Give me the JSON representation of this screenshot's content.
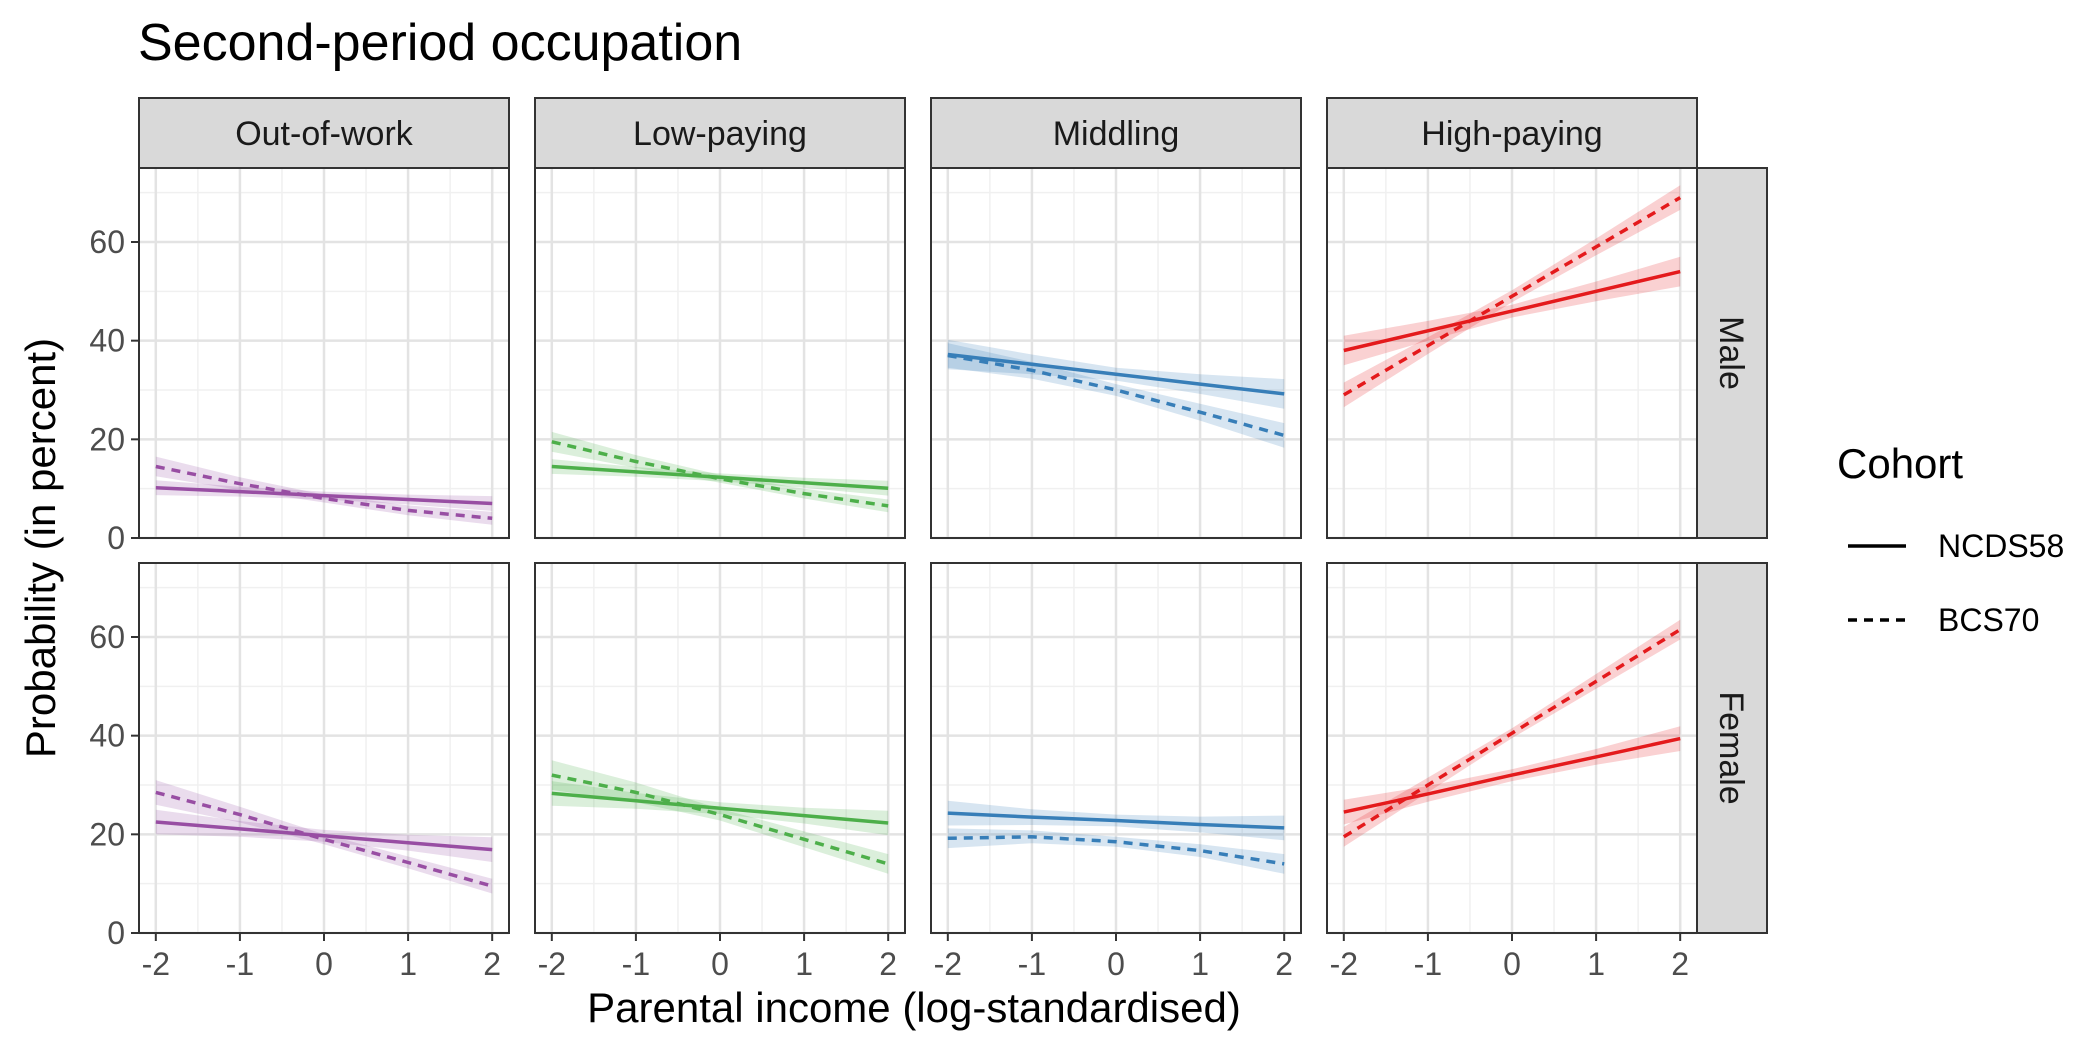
{
  "chart_data": {
    "type": "line",
    "title": "Second-period occupation",
    "xlabel": "Parental income (log-standardised)",
    "ylabel": "Probability (in percent)",
    "xlim": [
      -2.2,
      2.2
    ],
    "ylim": [
      0,
      75
    ],
    "x_ticks": [
      -2,
      -1,
      0,
      1,
      2
    ],
    "x_tick_labels": [
      "-2",
      "-1",
      "0",
      "1",
      "2"
    ],
    "y_ticks": [
      0,
      20,
      40,
      60
    ],
    "y_tick_labels": [
      "0",
      "20",
      "40",
      "60"
    ],
    "columns": [
      "Out-of-work",
      "Low-paying",
      "Middling",
      "High-paying"
    ],
    "rows": [
      "Male",
      "Female"
    ],
    "colors": {
      "Out-of-work": "#984ea3",
      "Low-paying": "#4daf4a",
      "Middling": "#377eb8",
      "High-paying": "#e41a1c"
    },
    "legend": {
      "title": "Cohort",
      "position": "right",
      "items": [
        {
          "label": "NCDS58",
          "linetype": "solid"
        },
        {
          "label": "BCS70",
          "linetype": "dashed"
        }
      ]
    },
    "grid": true,
    "x": [
      -2,
      -1,
      0,
      1,
      2
    ],
    "panels": [
      {
        "row": "Male",
        "column": "Out-of-work",
        "series": [
          {
            "cohort": "NCDS58",
            "y": [
              10.2,
              9.4,
              8.6,
              7.8,
              7.0
            ],
            "ci": [
              1.5,
              1.0,
              0.8,
              1.0,
              1.5
            ]
          },
          {
            "cohort": "BCS70",
            "y": [
              14.5,
              11.0,
              8.0,
              5.6,
              4.0
            ],
            "ci": [
              2.0,
              1.3,
              0.8,
              1.0,
              1.3
            ]
          }
        ]
      },
      {
        "row": "Male",
        "column": "Low-paying",
        "series": [
          {
            "cohort": "NCDS58",
            "y": [
              14.5,
              13.4,
              12.3,
              11.2,
              10.1
            ],
            "ci": [
              1.5,
              1.0,
              0.8,
              1.0,
              1.5
            ]
          },
          {
            "cohort": "BCS70",
            "y": [
              19.5,
              15.5,
              12.0,
              9.0,
              6.5
            ],
            "ci": [
              2.0,
              1.3,
              0.8,
              1.0,
              1.3
            ]
          }
        ]
      },
      {
        "row": "Male",
        "column": "Middling",
        "series": [
          {
            "cohort": "NCDS58",
            "y": [
              37.2,
              35.2,
              33.2,
              31.2,
              29.2
            ],
            "ci": [
              3.0,
              2.0,
              1.3,
              2.0,
              3.0
            ]
          },
          {
            "cohort": "BCS70",
            "y": [
              37.0,
              34.0,
              30.0,
              25.5,
              20.8
            ],
            "ci": [
              2.5,
              1.7,
              1.2,
              1.7,
              2.5
            ]
          }
        ]
      },
      {
        "row": "Male",
        "column": "High-paying",
        "series": [
          {
            "cohort": "NCDS58",
            "y": [
              38.0,
              42.0,
              46.0,
              50.0,
              54.0
            ],
            "ci": [
              3.0,
              2.0,
              1.3,
              2.0,
              3.0
            ]
          },
          {
            "cohort": "BCS70",
            "y": [
              29.0,
              39.0,
              49.0,
              59.0,
              69.0
            ],
            "ci": [
              2.5,
              1.7,
              1.2,
              1.7,
              2.5
            ]
          }
        ]
      },
      {
        "row": "Female",
        "column": "Out-of-work",
        "series": [
          {
            "cohort": "NCDS58",
            "y": [
              22.5,
              21.1,
              19.7,
              18.3,
              16.9
            ],
            "ci": [
              2.5,
              1.6,
              1.2,
              1.6,
              2.5
            ]
          },
          {
            "cohort": "BCS70",
            "y": [
              28.5,
              24.0,
              19.0,
              14.3,
              9.5
            ],
            "ci": [
              2.5,
              1.6,
              1.0,
              1.2,
              1.5
            ]
          }
        ]
      },
      {
        "row": "Female",
        "column": "Low-paying",
        "series": [
          {
            "cohort": "NCDS58",
            "y": [
              28.3,
              26.8,
              25.3,
              23.8,
              22.3
            ],
            "ci": [
              2.5,
              1.6,
              1.2,
              1.6,
              2.5
            ]
          },
          {
            "cohort": "BCS70",
            "y": [
              32.0,
              28.5,
              24.0,
              19.0,
              14.0
            ],
            "ci": [
              3.0,
              2.0,
              1.2,
              1.6,
              2.0
            ]
          }
        ]
      },
      {
        "row": "Female",
        "column": "Middling",
        "series": [
          {
            "cohort": "NCDS58",
            "y": [
              24.3,
              23.5,
              22.8,
              22.0,
              21.3
            ],
            "ci": [
              2.5,
              1.6,
              1.2,
              1.6,
              2.5
            ]
          },
          {
            "cohort": "BCS70",
            "y": [
              19.2,
              19.5,
              18.5,
              16.7,
              14.0
            ],
            "ci": [
              2.0,
              1.3,
              1.0,
              1.3,
              2.0
            ]
          }
        ]
      },
      {
        "row": "Female",
        "column": "High-paying",
        "series": [
          {
            "cohort": "NCDS58",
            "y": [
              24.5,
              28.2,
              32.0,
              35.7,
              39.4
            ],
            "ci": [
              2.5,
              1.6,
              1.2,
              1.6,
              2.5
            ]
          },
          {
            "cohort": "BCS70",
            "y": [
              19.5,
              30.0,
              40.5,
              51.0,
              61.5
            ],
            "ci": [
              2.0,
              1.5,
              1.0,
              1.5,
              2.0
            ]
          }
        ]
      }
    ]
  }
}
